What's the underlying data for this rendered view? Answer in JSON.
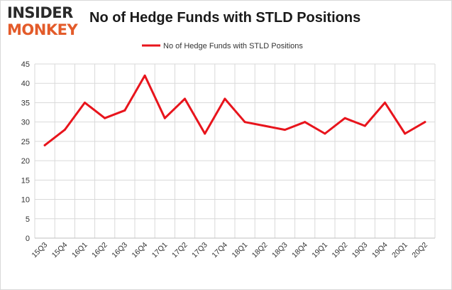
{
  "brand": {
    "line1": "INSIDER",
    "line2": "MONKEY",
    "color_dark": "#2a2a2a",
    "color_accent": "#e35b2a"
  },
  "chart_data": {
    "type": "line",
    "title": "No of Hedge Funds with STLD Positions",
    "xlabel": "",
    "ylabel": "",
    "legend_position": "top-center",
    "grid": true,
    "ylim": [
      0,
      45
    ],
    "yticks": [
      0,
      5,
      10,
      15,
      20,
      25,
      30,
      35,
      40,
      45
    ],
    "categories": [
      "15Q3",
      "15Q4",
      "16Q1",
      "16Q2",
      "16Q3",
      "16Q4",
      "17Q1",
      "17Q2",
      "17Q3",
      "17Q4",
      "18Q1",
      "18Q2",
      "18Q3",
      "18Q4",
      "19Q1",
      "19Q2",
      "19Q3",
      "19Q4",
      "20Q1",
      "20Q2"
    ],
    "series": [
      {
        "name": "No of Hedge Funds with STLD Positions",
        "color": "#e8141c",
        "values": [
          24,
          28,
          35,
          31,
          33,
          42,
          31,
          36,
          27,
          36,
          30,
          29,
          28,
          30,
          27,
          31,
          29,
          35,
          27,
          30
        ]
      }
    ]
  }
}
